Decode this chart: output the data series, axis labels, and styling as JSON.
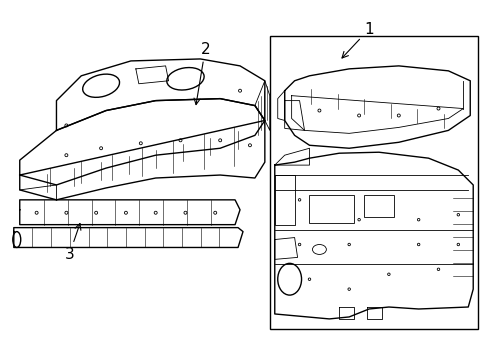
{
  "background_color": "#ffffff",
  "line_color": "#000000",
  "figsize": [
    4.89,
    3.6
  ],
  "dpi": 100,
  "label_fontsize": 11,
  "lw_main": 1.0,
  "lw_detail": 0.6,
  "lw_thin": 0.4
}
